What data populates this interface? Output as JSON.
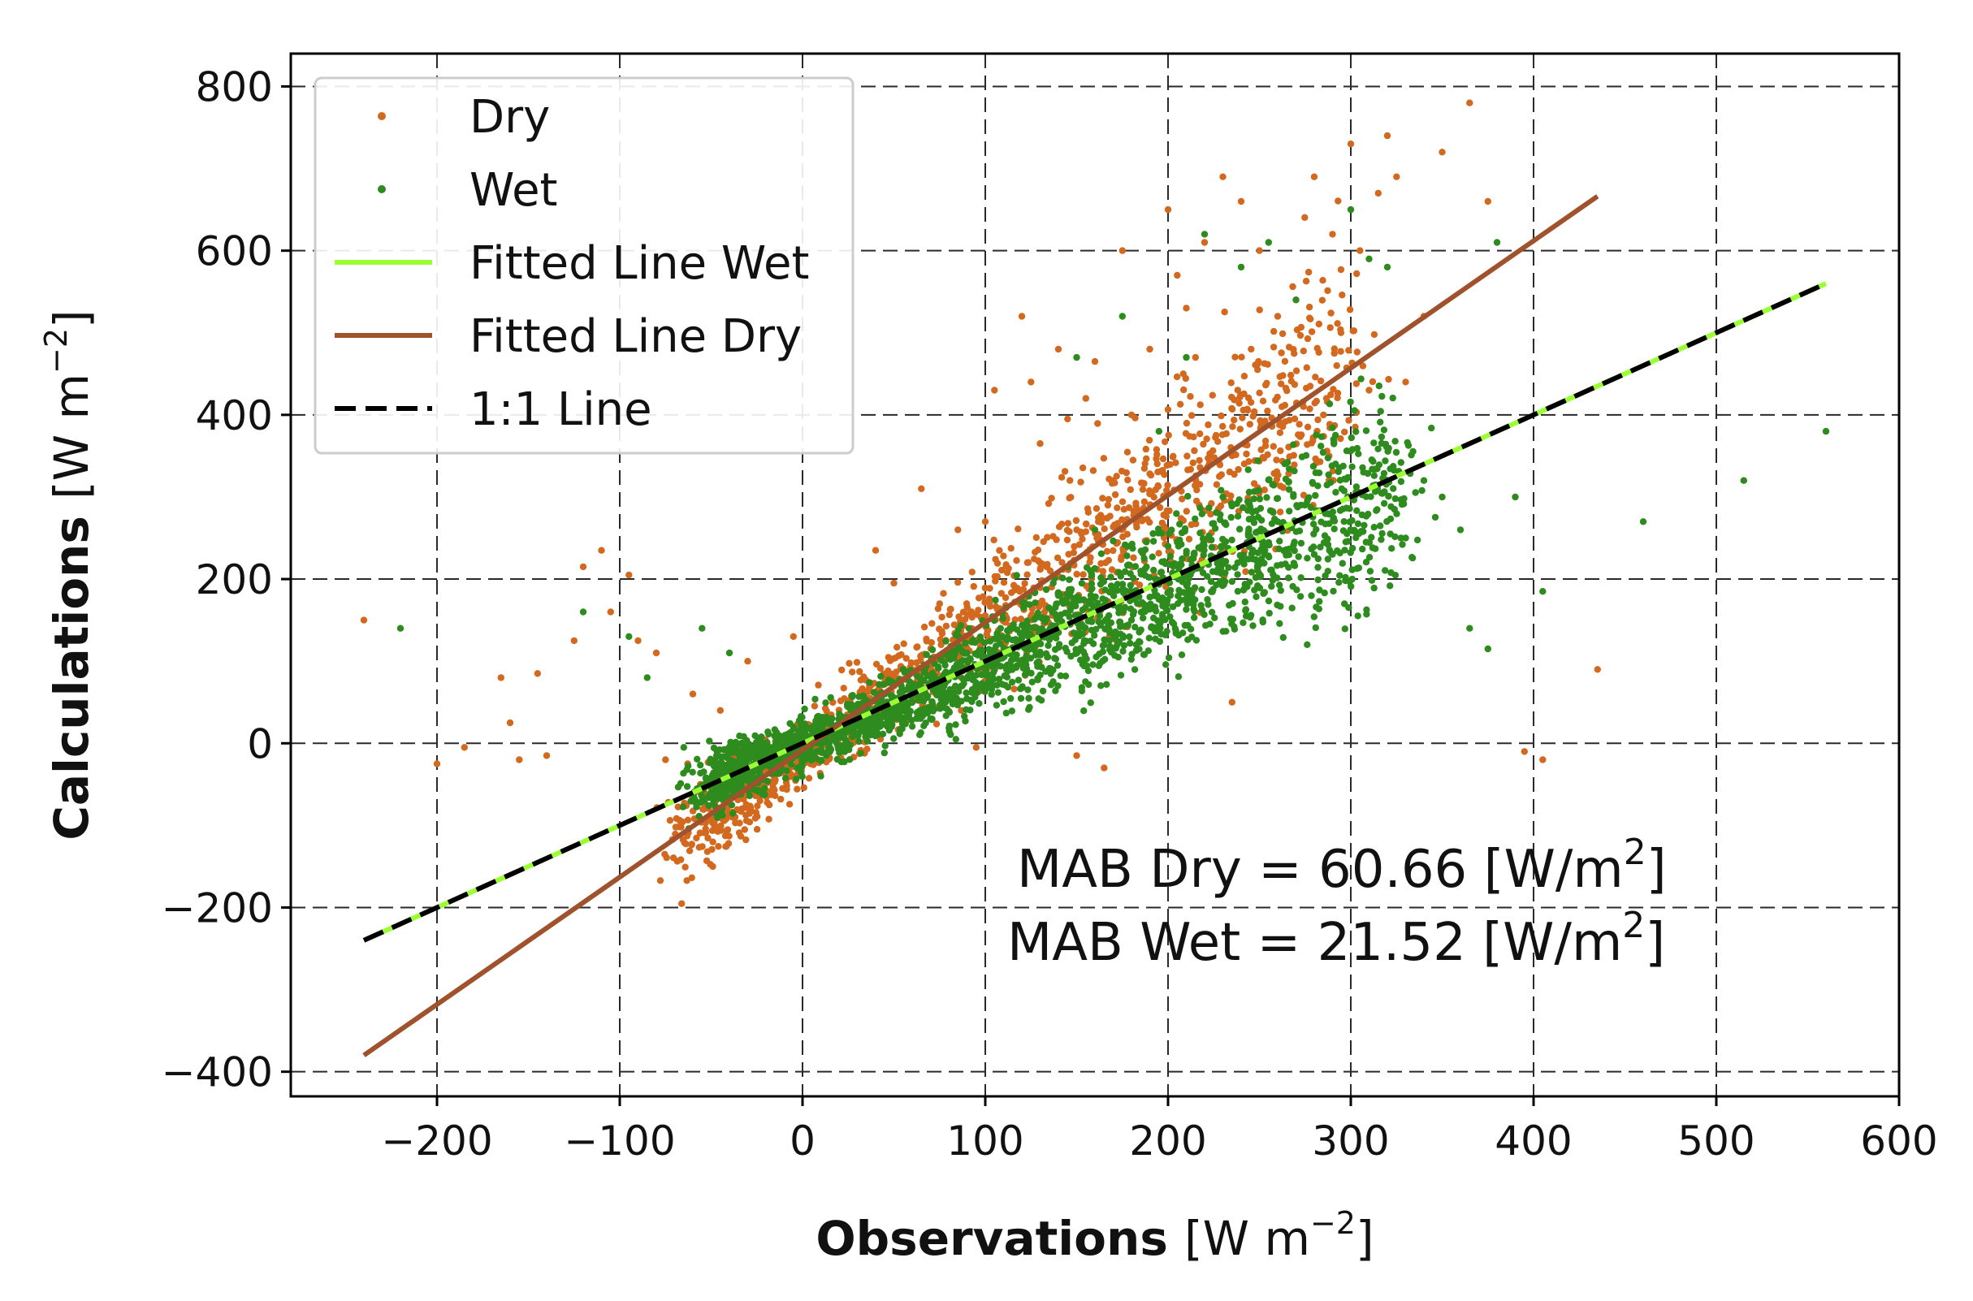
{
  "chart_data": {
    "type": "scatter",
    "xlabel": "Observations",
    "ylabel": "Calculations",
    "unit_label": "[W m",
    "unit_exp": "−2",
    "unit_close": "]",
    "xlim": [
      -280,
      600
    ],
    "ylim": [
      -430,
      840
    ],
    "grid": true,
    "xticks": [
      -200,
      -100,
      0,
      100,
      200,
      300,
      400,
      500,
      600
    ],
    "yticks": [
      -400,
      -200,
      0,
      200,
      400,
      600,
      800
    ],
    "xtick_labels": [
      "−200",
      "−100",
      "0",
      "100",
      "200",
      "300",
      "400",
      "500",
      "600"
    ],
    "ytick_labels": [
      "−400",
      "−200",
      "0",
      "200",
      "400",
      "600",
      "800"
    ],
    "legend_position": "top-left",
    "legend": [
      {
        "label": "Dry",
        "kind": "dot",
        "color": "#d2691e"
      },
      {
        "label": "Wet",
        "kind": "dot",
        "color": "#2e8b1e"
      },
      {
        "label": "Fitted Line Wet",
        "kind": "line",
        "color": "#9aff33"
      },
      {
        "label": "Fitted Line Dry",
        "kind": "line",
        "color": "#a0522d"
      },
      {
        "label": "1:1 Line",
        "kind": "dash",
        "color": "#000000"
      }
    ],
    "series": [
      {
        "name": "Dry",
        "color": "#d2691e",
        "notable_points": [
          [
            -240,
            150
          ],
          [
            -200,
            -25
          ],
          [
            -185,
            -5
          ],
          [
            -165,
            80
          ],
          [
            -160,
            25
          ],
          [
            -155,
            -20
          ],
          [
            -145,
            85
          ],
          [
            -140,
            -15
          ],
          [
            -125,
            125
          ],
          [
            -120,
            215
          ],
          [
            -110,
            235
          ],
          [
            -105,
            160
          ],
          [
            -95,
            205
          ],
          [
            -90,
            125
          ],
          [
            -80,
            110
          ],
          [
            -75,
            -20
          ],
          [
            -60,
            60
          ],
          [
            -45,
            40
          ],
          [
            -30,
            100
          ],
          [
            -20,
            -35
          ],
          [
            -5,
            130
          ],
          [
            40,
            235
          ],
          [
            50,
            195
          ],
          [
            65,
            310
          ],
          [
            75,
            170
          ],
          [
            85,
            260
          ],
          [
            95,
            -5
          ],
          [
            100,
            270
          ],
          [
            105,
            430
          ],
          [
            120,
            520
          ],
          [
            125,
            440
          ],
          [
            130,
            365
          ],
          [
            140,
            480
          ],
          [
            145,
            395
          ],
          [
            150,
            -15
          ],
          [
            155,
            420
          ],
          [
            160,
            465
          ],
          [
            165,
            -30
          ],
          [
            170,
            320
          ],
          [
            175,
            600
          ],
          [
            180,
            400
          ],
          [
            190,
            480
          ],
          [
            200,
            650
          ],
          [
            205,
            570
          ],
          [
            210,
            530
          ],
          [
            215,
            470
          ],
          [
            220,
            610
          ],
          [
            230,
            690
          ],
          [
            235,
            50
          ],
          [
            240,
            660
          ],
          [
            250,
            600
          ],
          [
            260,
            520
          ],
          [
            270,
            540
          ],
          [
            280,
            690
          ],
          [
            285,
            400
          ],
          [
            290,
            620
          ],
          [
            300,
            730
          ],
          [
            305,
            600
          ],
          [
            310,
            430
          ],
          [
            315,
            670
          ],
          [
            320,
            740
          ],
          [
            325,
            690
          ],
          [
            330,
            440
          ],
          [
            340,
            520
          ],
          [
            350,
            720
          ],
          [
            365,
            780
          ],
          [
            375,
            660
          ],
          [
            395,
            -10
          ],
          [
            405,
            -20
          ],
          [
            435,
            90
          ]
        ]
      },
      {
        "name": "Wet",
        "color": "#2e8b1e",
        "notable_points": [
          [
            -220,
            140
          ],
          [
            -120,
            160
          ],
          [
            -95,
            130
          ],
          [
            -85,
            80
          ],
          [
            -65,
            -5
          ],
          [
            -55,
            140
          ],
          [
            -40,
            110
          ],
          [
            -25,
            -5
          ],
          [
            -5,
            20
          ],
          [
            10,
            -40
          ],
          [
            20,
            10
          ],
          [
            30,
            45
          ],
          [
            45,
            60
          ],
          [
            55,
            90
          ],
          [
            70,
            30
          ],
          [
            90,
            110
          ],
          [
            100,
            70
          ],
          [
            120,
            130
          ],
          [
            140,
            180
          ],
          [
            150,
            470
          ],
          [
            160,
            260
          ],
          [
            175,
            520
          ],
          [
            180,
            150
          ],
          [
            195,
            380
          ],
          [
            200,
            240
          ],
          [
            210,
            470
          ],
          [
            220,
            620
          ],
          [
            230,
            300
          ],
          [
            240,
            580
          ],
          [
            255,
            610
          ],
          [
            260,
            270
          ],
          [
            270,
            540
          ],
          [
            280,
            230
          ],
          [
            295,
            310
          ],
          [
            300,
            650
          ],
          [
            310,
            590
          ],
          [
            320,
            580
          ],
          [
            330,
            250
          ],
          [
            340,
            320
          ],
          [
            350,
            300
          ],
          [
            360,
            260
          ],
          [
            365,
            140
          ],
          [
            375,
            115
          ],
          [
            380,
            610
          ],
          [
            390,
            300
          ],
          [
            405,
            185
          ],
          [
            460,
            270
          ],
          [
            515,
            320
          ],
          [
            560,
            380
          ]
        ]
      }
    ],
    "lines": [
      {
        "name": "Fitted Line Wet",
        "slope": 1.0,
        "intercept": 0.0,
        "x_range": [
          -240,
          560
        ],
        "color": "#9aff33"
      },
      {
        "name": "Fitted Line Dry",
        "slope": 1.55,
        "intercept": -8,
        "x_range": [
          -240,
          435
        ],
        "color": "#a0522d"
      },
      {
        "name": "1:1 Line",
        "slope": 1.0,
        "intercept": 0.0,
        "x_range": [
          -240,
          560
        ],
        "color": "#000000",
        "dashed": true
      }
    ],
    "annotations": [
      {
        "text": "MAB Dry = 60.66 [W/m",
        "sup": "2",
        "close": "]"
      },
      {
        "text": "MAB Wet = 21.52 [W/m",
        "sup": "2",
        "close": "]"
      }
    ]
  }
}
